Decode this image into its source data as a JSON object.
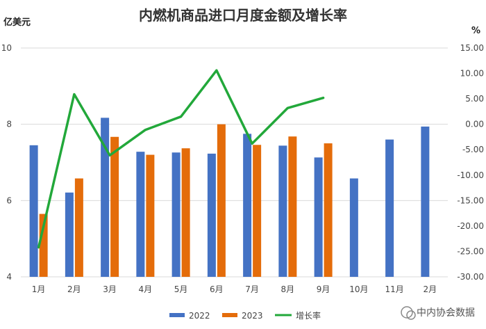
{
  "chart_data": {
    "type": "bar",
    "title": "内燃机商品进口月度金额及增长率",
    "left_axis_unit": "亿美元",
    "right_axis_unit": "%",
    "categories": [
      "1月",
      "2月",
      "3月",
      "4月",
      "5月",
      "6月",
      "7月",
      "8月",
      "9月",
      "10月",
      "11月",
      "2月"
    ],
    "series": [
      {
        "name": "2022",
        "type": "bar",
        "axis": "left",
        "color": "#4472C4",
        "values": [
          7.45,
          6.21,
          8.17,
          7.28,
          7.26,
          7.23,
          7.75,
          7.44,
          7.13,
          6.58,
          7.6,
          7.94
        ]
      },
      {
        "name": "2023",
        "type": "bar",
        "axis": "left",
        "color": "#E46C0A",
        "values": [
          5.65,
          6.58,
          7.67,
          7.2,
          7.37,
          8.0,
          7.46,
          7.68,
          7.5,
          null,
          null,
          null
        ]
      },
      {
        "name": "增长率",
        "type": "line",
        "axis": "right",
        "color": "#22A83A",
        "values": [
          -24.2,
          5.9,
          -6.1,
          -1.1,
          1.5,
          10.6,
          -3.8,
          3.2,
          5.2,
          null,
          null,
          null
        ]
      }
    ],
    "left_axis": {
      "ylim": [
        4,
        10
      ],
      "ticks": [
        "4",
        "6",
        "8",
        "10"
      ],
      "tick_values": [
        4,
        6,
        8,
        10
      ]
    },
    "right_axis": {
      "ylim": [
        -30,
        15
      ],
      "ticks": [
        "-30.00",
        "-25.00",
        "-20.00",
        "-15.00",
        "-10.00",
        "-5.00",
        "0.00",
        "5.00",
        "10.00",
        "15.00"
      ],
      "tick_values": [
        -30,
        -25,
        -20,
        -15,
        -10,
        -5,
        0,
        5,
        10,
        15
      ]
    },
    "grid": true,
    "legend_position": "bottom"
  },
  "watermark": {
    "text": "中内协会数据"
  }
}
